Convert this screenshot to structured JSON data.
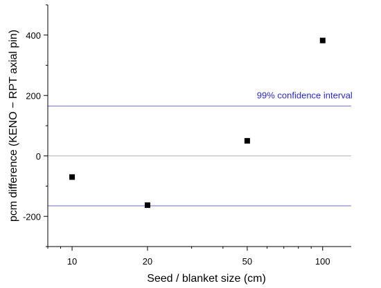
{
  "chart_data": {
    "type": "scatter",
    "xlabel": "Seed / blanket size (cm)",
    "ylabel": "pcm difference (KENO − RPT axial pin)",
    "x_scale": "log",
    "xlim": [
      8,
      130
    ],
    "ylim": [
      -300,
      500
    ],
    "x_ticks": [
      10,
      20,
      50,
      100
    ],
    "x_tick_labels": [
      "10",
      "20",
      "50",
      "100"
    ],
    "y_ticks": [
      -200,
      0,
      200,
      400
    ],
    "y_tick_labels": [
      "-200",
      "0",
      "200",
      "400"
    ],
    "grid": false,
    "series": [
      {
        "x": [
          10,
          20,
          50,
          100
        ],
        "y": [
          -70,
          -163,
          50,
          382
        ],
        "marker": "square",
        "color": "#000000"
      }
    ],
    "reference_lines": [
      {
        "y": 0,
        "color": "#b0b0b0"
      },
      {
        "y": 165,
        "color": "#6b6bdc"
      },
      {
        "y": -165,
        "color": "#6b6bdc"
      }
    ],
    "annotations": [
      {
        "text": "99% confidence interval",
        "x": 100,
        "y": 200,
        "color": "#2a2ad2"
      }
    ]
  }
}
